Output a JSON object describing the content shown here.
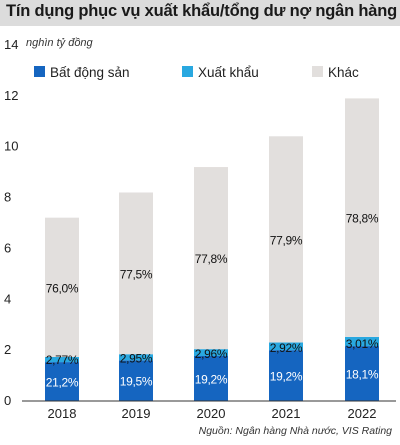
{
  "chart_data": {
    "type": "bar",
    "stacked": true,
    "title": "Tín dụng phục vụ xuất khẩu/tổng dư nợ ngân hàng",
    "unit_label": "nghìn tỷ đồng",
    "source": "Nguồn: Ngân hàng Nhà nước, VIS Rating",
    "categories": [
      "2018",
      "2019",
      "2020",
      "2021",
      "2022"
    ],
    "yticks": [
      "0",
      "2",
      "4",
      "6",
      "8",
      "10",
      "12",
      "14"
    ],
    "ylim": [
      0,
      14
    ],
    "grid": false,
    "legend_position": "top",
    "series": [
      {
        "name": "Bất động sản",
        "color": "#1565c0",
        "text_color": "#ffffff",
        "values": [
          1.53,
          1.6,
          1.77,
          2.0,
          2.16
        ],
        "labels": [
          "21,2%",
          "19,5%",
          "19,2%",
          "19,2%",
          "18,1%"
        ]
      },
      {
        "name": "Xuất khẩu",
        "color": "#29a8e0",
        "text_color": "#111111",
        "values": [
          0.2,
          0.24,
          0.27,
          0.3,
          0.36
        ],
        "labels": [
          "2,77%",
          "2,95%",
          "2,96%",
          "2,92%",
          "3,01%"
        ]
      },
      {
        "name": "Khác",
        "color": "#e2dfdd",
        "text_color": "#111111",
        "values": [
          5.48,
          6.36,
          7.16,
          8.11,
          9.38
        ],
        "labels": [
          "76,0%",
          "77,5%",
          "77,8%",
          "77,9%",
          "78,8%"
        ]
      }
    ]
  }
}
